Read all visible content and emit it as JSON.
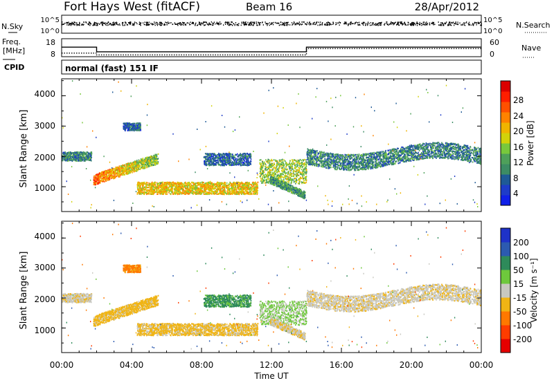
{
  "header": {
    "radar": "Fort Hays West (fitACF)",
    "beam": "Beam 16",
    "date": "28/Apr/2012"
  },
  "noise_panel": {
    "left_label": "N.Sky",
    "right_label": "N.Search",
    "left_ticks": [
      "10^5",
      "10^0"
    ],
    "right_ticks": [
      "10^5",
      "10^0"
    ]
  },
  "freq_panel": {
    "left_label_1": "Freq.",
    "left_label_2": "[MHz]",
    "right_label": "Nave",
    "left_ticks": [
      "18",
      "8"
    ],
    "right_ticks": [
      "60",
      "0"
    ],
    "freq_steps": [
      [
        0.0,
        13.3
      ],
      [
        2.0,
        10.7
      ],
      [
        14.0,
        13.3
      ],
      [
        24.0,
        13.3
      ]
    ],
    "nave_steps": [
      [
        0.0,
        12
      ],
      [
        2.0,
        6
      ],
      [
        14.0,
        27
      ],
      [
        24.0,
        27
      ]
    ]
  },
  "cpid_panel": {
    "label": "CPID",
    "mode": "normal (fast) 151 IF"
  },
  "power_panel": {
    "ylabel": "Slant Range [km]",
    "yticks": [
      "4000",
      "3000",
      "2000",
      "1000"
    ],
    "colorbar_label": "Power [dB]",
    "colorbar_ticks": [
      "28",
      "24",
      "20",
      "16",
      "12",
      "8",
      "4"
    ],
    "colors": [
      "#1020e8",
      "#1e3cc8",
      "#1e5a96",
      "#3c8c64",
      "#4ea05a",
      "#78c83c",
      "#d2d20a",
      "#f0b400",
      "#ff8200",
      "#ff5000",
      "#ff1e00",
      "#dc0000"
    ]
  },
  "velocity_panel": {
    "ylabel": "Slant Range [km]",
    "yticks": [
      "4000",
      "3000",
      "2000",
      "1000"
    ],
    "colorbar_label": "Velocity [m s⁻¹]",
    "colorbar_ticks": [
      "200",
      "100",
      "50",
      "15",
      "-15",
      "-50",
      "-100",
      "-200"
    ],
    "colors": [
      "#1e32c8",
      "#2c5ab0",
      "#2e8a5a",
      "#6ec83c",
      "#c8c8c0",
      "#f0b414",
      "#ff7800",
      "#ff3c00",
      "#e60000"
    ]
  },
  "xaxis": {
    "label": "Time UT",
    "ticks": [
      "00:00",
      "04:00",
      "08:00",
      "12:00",
      "16:00",
      "20:00",
      "00:00"
    ]
  },
  "chart_data": {
    "type": "heatmap",
    "title": "Fort Hays West (fitACF) Beam 16 28/Apr/2012",
    "xlabel": "Time UT",
    "ylabel": "Slant Range [km]",
    "xlim_hours": [
      0,
      24
    ],
    "ylim_km": [
      180,
      4560
    ],
    "colorbar_power_db": [
      0,
      32
    ],
    "colorbar_velocity_ms": [
      -250,
      250
    ],
    "grid": false,
    "scatter_bands": [
      {
        "start_h": 0.0,
        "end_h": 1.7,
        "range_km": [
          1850,
          2150
        ],
        "power_db": 9,
        "velocity_ms": -5
      },
      {
        "start_h": 1.8,
        "end_h": 5.5,
        "range_km": [
          1100,
          2200
        ],
        "power_db": 25,
        "velocity_ms": -30
      },
      {
        "start_h": 3.5,
        "end_h": 4.5,
        "range_km": [
          2850,
          3100
        ],
        "power_db": 7,
        "velocity_ms": -60
      },
      {
        "start_h": 4.3,
        "end_h": 11.2,
        "range_km": [
          750,
          1150
        ],
        "power_db": 19,
        "velocity_ms": -25
      },
      {
        "start_h": 8.1,
        "end_h": 10.8,
        "range_km": [
          1700,
          2100
        ],
        "power_db": 7,
        "velocity_ms": 60
      },
      {
        "start_h": 11.3,
        "end_h": 14.0,
        "range_km": [
          1100,
          1900
        ],
        "power_db": 15,
        "velocity_ms": 20
      },
      {
        "start_h": 11.9,
        "end_h": 13.9,
        "range_km": [
          600,
          1100
        ],
        "power_db": 11,
        "velocity_ms": -10
      },
      {
        "start_h": 14.0,
        "end_h": 24.0,
        "range_km": [
          1500,
          2500
        ],
        "power_db": 9,
        "velocity_ms": -5
      }
    ]
  }
}
